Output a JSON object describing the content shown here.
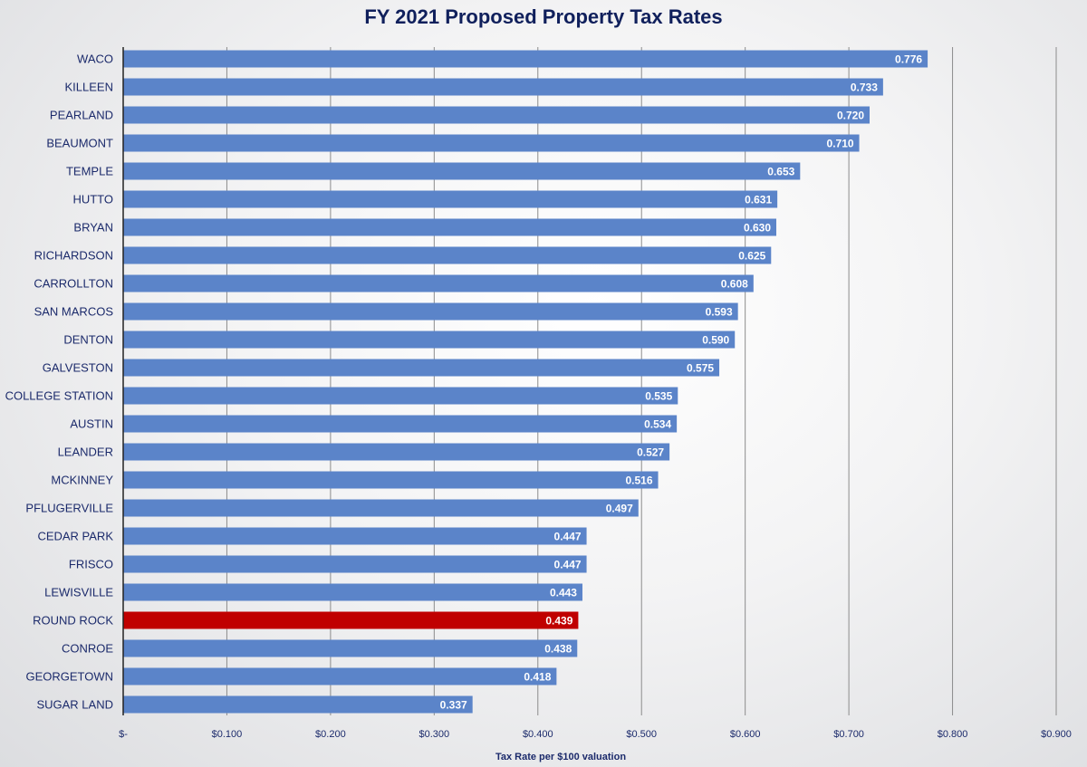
{
  "chart_data": {
    "type": "bar",
    "orientation": "horizontal",
    "title": "FY 2021 Proposed Property Tax Rates",
    "xlabel": "Tax Rate per $100 valuation",
    "ylabel": "",
    "xlim": [
      0,
      0.9
    ],
    "xticks": [
      0,
      0.1,
      0.2,
      0.3,
      0.4,
      0.5,
      0.6,
      0.7,
      0.8,
      0.9
    ],
    "tick_labels": [
      "$-",
      "$0.100",
      "$0.200",
      "$0.300",
      "$0.400",
      "$0.500",
      "$0.600",
      "$0.700",
      "$0.800",
      "$0.900"
    ],
    "grid": true,
    "categories": [
      "WACO",
      "KILLEEN",
      "PEARLAND",
      "BEAUMONT",
      "TEMPLE",
      "HUTTO",
      "BRYAN",
      "RICHARDSON",
      "CARROLLTON",
      "SAN MARCOS",
      "DENTON",
      "GALVESTON",
      "COLLEGE STATION",
      "AUSTIN",
      "LEANDER",
      "MCKINNEY",
      "PFLUGERVILLE",
      "CEDAR PARK",
      "FRISCO",
      "LEWISVILLE",
      "ROUND ROCK",
      "CONROE",
      "GEORGETOWN",
      "SUGAR LAND"
    ],
    "values": [
      0.776,
      0.733,
      0.72,
      0.71,
      0.653,
      0.631,
      0.63,
      0.625,
      0.608,
      0.593,
      0.59,
      0.575,
      0.535,
      0.534,
      0.527,
      0.516,
      0.497,
      0.447,
      0.447,
      0.443,
      0.439,
      0.438,
      0.418,
      0.337
    ],
    "value_labels": [
      "0.776",
      "0.733",
      "0.720",
      "0.710",
      "0.653",
      "0.631",
      "0.630",
      "0.625",
      "0.608",
      "0.593",
      "0.590",
      "0.575",
      "0.535",
      "0.534",
      "0.527",
      "0.516",
      "0.497",
      "0.447",
      "0.447",
      "0.443",
      "0.439",
      "0.438",
      "0.418",
      "0.337"
    ],
    "highlight_category": "ROUND ROCK",
    "colors": {
      "bar": "#5b84c9",
      "highlight": "#c00000",
      "axis": "#222222",
      "grid": "#8c8c8c",
      "title": "#10205c",
      "text": "#1b2a6b"
    }
  }
}
